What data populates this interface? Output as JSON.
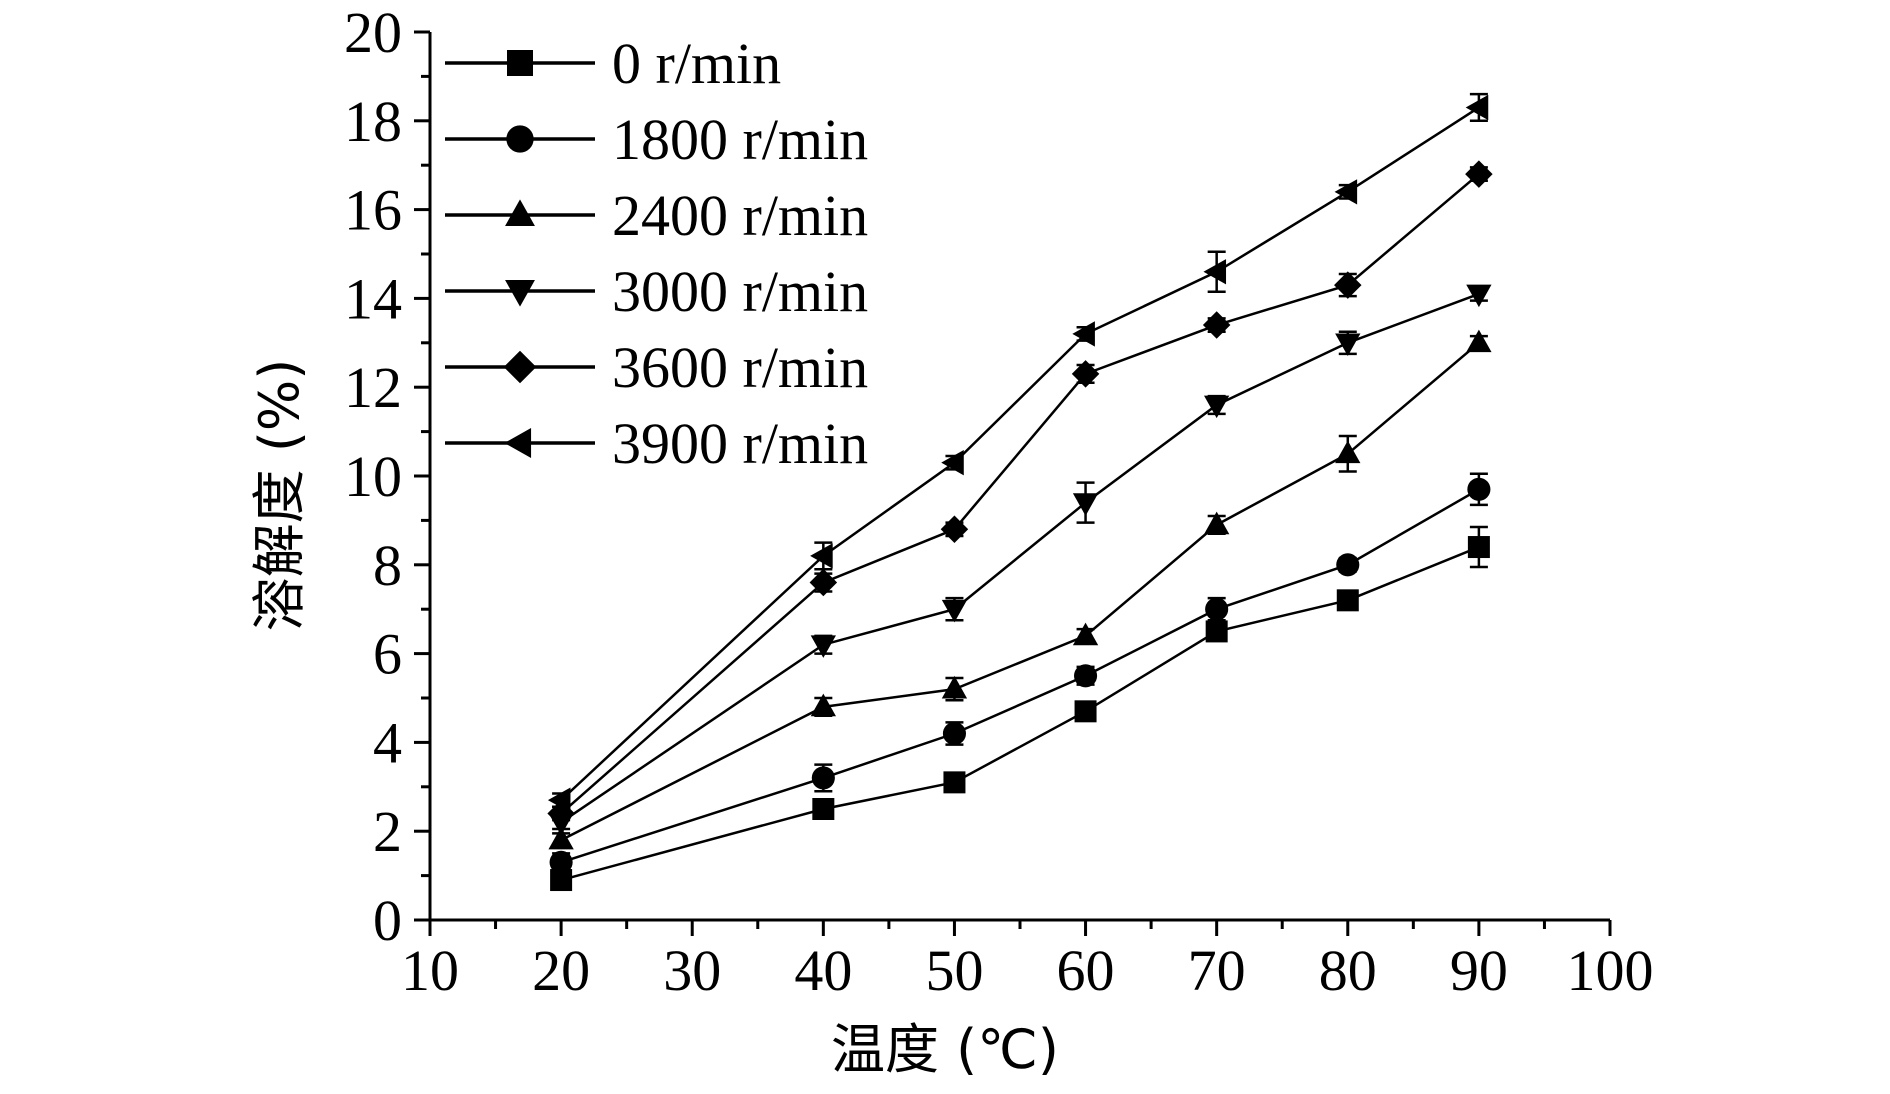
{
  "chart_data": {
    "type": "line",
    "xlabel": "温度 (℃)",
    "ylabel": "溶解度 (%)",
    "xlim": [
      10,
      100
    ],
    "ylim": [
      0,
      20
    ],
    "x_ticks": [
      "10",
      "20",
      "30",
      "40",
      "50",
      "60",
      "70",
      "80",
      "90",
      "100"
    ],
    "y_ticks": [
      "0",
      "2",
      "4",
      "6",
      "8",
      "10",
      "12",
      "14",
      "16",
      "18",
      "20"
    ],
    "grid": false,
    "legend_position": "top-left",
    "x": [
      20,
      40,
      50,
      60,
      70,
      80,
      90
    ],
    "series": [
      {
        "name": "0 r/min",
        "marker": "square",
        "values": [
          0.9,
          2.5,
          3.1,
          4.7,
          6.5,
          7.2,
          8.4
        ],
        "errors": [
          0.1,
          0.15,
          0.15,
          0.15,
          0.2,
          0.15,
          0.45
        ]
      },
      {
        "name": "1800 r/min",
        "marker": "circle",
        "values": [
          1.3,
          3.2,
          4.2,
          5.5,
          7.0,
          8.0,
          9.7
        ],
        "errors": [
          0.2,
          0.3,
          0.25,
          0.2,
          0.25,
          0.15,
          0.35
        ]
      },
      {
        "name": "2400 r/min",
        "marker": "triangle-up",
        "values": [
          1.8,
          4.8,
          5.2,
          6.4,
          8.9,
          10.5,
          13.0
        ],
        "errors": [
          0.15,
          0.2,
          0.25,
          0.15,
          0.2,
          0.4,
          0.15
        ]
      },
      {
        "name": "3000 r/min",
        "marker": "triangle-down",
        "values": [
          2.2,
          6.2,
          7.0,
          9.4,
          11.6,
          13.0,
          14.1
        ],
        "errors": [
          0.15,
          0.2,
          0.25,
          0.45,
          0.2,
          0.25,
          0.15
        ]
      },
      {
        "name": "3600 r/min",
        "marker": "diamond",
        "values": [
          2.4,
          7.6,
          8.8,
          12.3,
          13.4,
          14.3,
          16.8
        ],
        "errors": [
          0.15,
          0.2,
          0.15,
          0.2,
          0.15,
          0.25,
          0.15
        ]
      },
      {
        "name": "3900 r/min",
        "marker": "triangle-left",
        "values": [
          2.7,
          8.2,
          10.3,
          13.2,
          14.6,
          16.4,
          18.3
        ],
        "errors": [
          0.15,
          0.3,
          0.15,
          0.15,
          0.45,
          0.15,
          0.3
        ]
      }
    ],
    "colors": {
      "line": "#000000",
      "marker": "#000000"
    }
  }
}
